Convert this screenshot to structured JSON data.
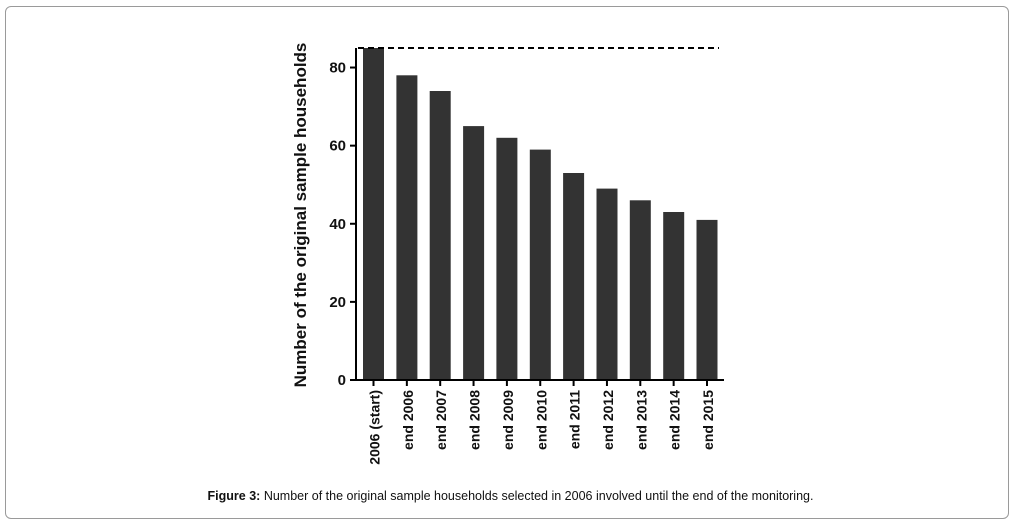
{
  "chart_data": {
    "type": "bar",
    "categories": [
      "2006 (start)",
      "end 2006",
      "end 2007",
      "end 2008",
      "end 2009",
      "end 2010",
      "end 2011",
      "end 2012",
      "end 2013",
      "end 2014",
      "end 2015"
    ],
    "values": [
      85,
      78,
      74,
      65,
      62,
      59,
      53,
      49,
      46,
      43,
      41
    ],
    "ylabel": "Number of the original sample households",
    "xlabel": "",
    "ylim": [
      0,
      85
    ],
    "yticks": [
      0,
      20,
      40,
      60,
      80
    ],
    "reference_line": {
      "value": 85,
      "style": "dashed"
    },
    "bar_color": "#333333",
    "grid": false
  },
  "caption": {
    "label": "Figure 3:",
    "text": "Number of the original sample households selected in 2006 involved until the end of the monitoring."
  }
}
